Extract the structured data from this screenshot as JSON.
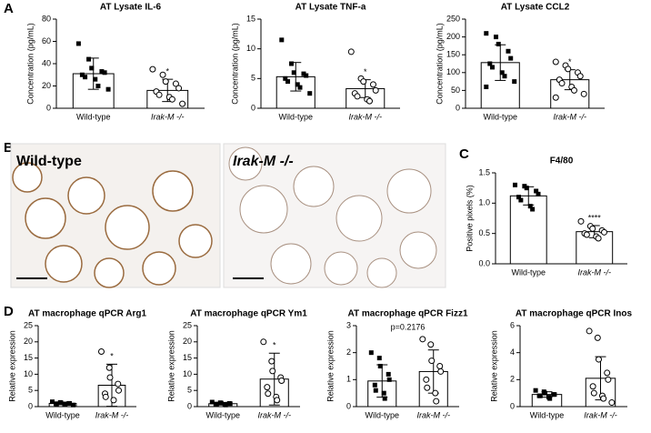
{
  "panel_labels": [
    "A",
    "B",
    "C",
    "D"
  ],
  "images": [
    {
      "label": "Wild-type"
    },
    {
      "label": "Irak-M -/-"
    }
  ],
  "chart_data": [
    {
      "type": "bar",
      "title": "AT Lysate IL-6",
      "ylabel": "Concentration (pg/mL)",
      "categories": [
        "Wild-type",
        "Irak-M -/-"
      ],
      "values": [
        31,
        16
      ],
      "errors": [
        14,
        10
      ],
      "points": [
        [
          58,
          44,
          36,
          33,
          32,
          30,
          28,
          26,
          20,
          17
        ],
        [
          35,
          30,
          24,
          22,
          18,
          15,
          12,
          10,
          8,
          4
        ]
      ],
      "markers": [
        "square",
        "circle"
      ],
      "annotations": [
        null,
        "*"
      ],
      "ylim": [
        0,
        80
      ],
      "yticks": [
        0,
        20,
        40,
        60,
        80
      ]
    },
    {
      "type": "bar",
      "title": "AT Lysate TNF-a",
      "ylabel": "Concentration (pg/mL)",
      "categories": [
        "Wild-type",
        "Irak-M -/-"
      ],
      "values": [
        5.3,
        3.3
      ],
      "errors": [
        2.4,
        1.5
      ],
      "points": [
        [
          11.5,
          7.5,
          6,
          5.8,
          5.5,
          5,
          4.5,
          4,
          3.5,
          2.5
        ],
        [
          9.5,
          5,
          4.5,
          4,
          3,
          2.5,
          2,
          1.5,
          1.2
        ]
      ],
      "markers": [
        "square",
        "circle"
      ],
      "annotations": [
        null,
        "*"
      ],
      "ylim": [
        0,
        15
      ],
      "yticks": [
        0,
        5,
        10,
        15
      ]
    },
    {
      "type": "bar",
      "title": "AT Lysate CCL2",
      "ylabel": "Concentration (pg/mL)",
      "categories": [
        "Wild-type",
        "Irak-M -/-"
      ],
      "values": [
        128,
        80
      ],
      "errors": [
        50,
        28
      ],
      "points": [
        [
          210,
          200,
          180,
          160,
          140,
          125,
          115,
          100,
          90,
          75,
          60
        ],
        [
          130,
          120,
          110,
          100,
          90,
          80,
          70,
          60,
          50,
          40,
          30
        ]
      ],
      "markers": [
        "square",
        "circle"
      ],
      "annotations": [
        null,
        "*"
      ],
      "ylim": [
        0,
        250
      ],
      "yticks": [
        0,
        50,
        100,
        150,
        200,
        250
      ]
    },
    {
      "type": "bar",
      "title": "F4/80",
      "ylabel": "Positive pixels (%)",
      "categories": [
        "Wild-type",
        "Irak-M -/-"
      ],
      "values": [
        1.12,
        0.53
      ],
      "errors": [
        0.15,
        0.1
      ],
      "points": [
        [
          1.3,
          1.28,
          1.25,
          1.2,
          1.15,
          1.1,
          1.05,
          0.95,
          0.9
        ],
        [
          0.7,
          0.62,
          0.58,
          0.55,
          0.52,
          0.5,
          0.48,
          0.45,
          0.42
        ]
      ],
      "markers": [
        "square",
        "circle"
      ],
      "annotations": [
        null,
        "****"
      ],
      "ylim": [
        0,
        1.5
      ],
      "yticks": [
        {
          "value": 0,
          "label": "0.0"
        },
        0.5,
        {
          "value": 1,
          "label": "1.0"
        },
        1.5
      ]
    },
    {
      "type": "bar",
      "title": "AT macrophage qPCR Arg1",
      "ylabel": "Relative expression",
      "categories": [
        "Wild-type",
        "Irak-M -/-"
      ],
      "values": [
        1,
        6.6
      ],
      "errors": [
        0.4,
        6.5
      ],
      "points": [
        [
          1.5,
          1.3,
          1.2,
          1,
          1,
          0.9,
          0.8,
          0.7,
          0.6,
          0.5
        ],
        [
          17,
          12,
          9,
          7,
          5,
          4,
          3,
          2
        ]
      ],
      "markers": [
        "square",
        "circle"
      ],
      "annotations": [
        null,
        "*"
      ],
      "ylim": [
        0,
        25
      ],
      "yticks": [
        0,
        5,
        10,
        15,
        20,
        25
      ]
    },
    {
      "type": "bar",
      "title": "AT macrophage qPCR Ym1",
      "ylabel": "Relative expression",
      "categories": [
        "Wild-type",
        "Irak-M -/-"
      ],
      "values": [
        0.9,
        8.5
      ],
      "errors": [
        0.4,
        8
      ],
      "points": [
        [
          1.4,
          1.2,
          1.1,
          1,
          0.9,
          0.8,
          0.7,
          0.6,
          0.5
        ],
        [
          20,
          14,
          11,
          9,
          8,
          6,
          4,
          3,
          2
        ]
      ],
      "markers": [
        "square",
        "circle"
      ],
      "annotations": [
        null,
        "*"
      ],
      "ylim": [
        0,
        25
      ],
      "yticks": [
        0,
        5,
        10,
        15,
        20,
        25
      ]
    },
    {
      "type": "bar",
      "title": "AT macrophage qPCR Fizz1",
      "ylabel": "Relative expression",
      "categories": [
        "Wild-type",
        "Irak-M -/-"
      ],
      "values": [
        0.95,
        1.3
      ],
      "errors": [
        0.6,
        0.8
      ],
      "points": [
        [
          2,
          1.8,
          1.5,
          1.2,
          1,
          0.8,
          0.6,
          0.5,
          0.3
        ],
        [
          2.5,
          2.3,
          1.7,
          1.5,
          1.3,
          1,
          0.7,
          0.5,
          0.2
        ]
      ],
      "markers": [
        "square",
        "circle"
      ],
      "note": "p=0.2176",
      "ylim": [
        0,
        3
      ],
      "yticks": [
        0,
        1,
        2,
        3
      ]
    },
    {
      "type": "bar",
      "title": "AT macrophage qPCR Inos",
      "ylabel": "Relative expression",
      "categories": [
        "Wild-type",
        "Irak-M -/-"
      ],
      "values": [
        0.9,
        2.1
      ],
      "errors": [
        0.2,
        1.6
      ],
      "points": [
        [
          1.2,
          1.1,
          1,
          0.9,
          0.9,
          0.8,
          0.8,
          0.7,
          0.6
        ],
        [
          5.6,
          5.1,
          3.5,
          2.5,
          2,
          1.5,
          1,
          0.8,
          0.6,
          0.3
        ]
      ],
      "markers": [
        "square",
        "circle"
      ],
      "ylim": [
        0,
        6
      ],
      "yticks": [
        0,
        2,
        4,
        6
      ]
    }
  ]
}
